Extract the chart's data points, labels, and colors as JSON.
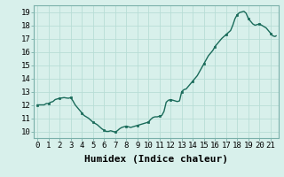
{
  "xlabel": "Humidex (Indice chaleur)",
  "x_values": [
    0,
    0.2,
    0.4,
    0.6,
    0.8,
    1.0,
    1.2,
    1.4,
    1.6,
    1.8,
    2.0,
    2.2,
    2.4,
    2.6,
    2.8,
    3.0,
    3.2,
    3.4,
    3.6,
    3.8,
    4.0,
    4.2,
    4.4,
    4.6,
    4.8,
    5.0,
    5.2,
    5.4,
    5.6,
    5.8,
    6.0,
    6.2,
    6.4,
    6.6,
    6.8,
    7.0,
    7.2,
    7.4,
    7.6,
    7.8,
    8.0,
    8.2,
    8.4,
    8.6,
    8.8,
    9.0,
    9.2,
    9.4,
    9.6,
    9.8,
    10.0,
    10.2,
    10.4,
    10.6,
    10.8,
    11.0,
    11.2,
    11.4,
    11.6,
    11.8,
    12.0,
    12.2,
    12.4,
    12.6,
    12.8,
    13.0,
    13.2,
    13.4,
    13.6,
    13.8,
    14.0,
    14.2,
    14.4,
    14.6,
    14.8,
    15.0,
    15.2,
    15.4,
    15.6,
    15.8,
    16.0,
    16.2,
    16.4,
    16.6,
    16.8,
    17.0,
    17.2,
    17.4,
    17.6,
    17.8,
    18.0,
    18.2,
    18.4,
    18.6,
    18.8,
    19.0,
    19.2,
    19.4,
    19.6,
    19.8,
    20.0,
    20.2,
    20.4,
    20.6,
    20.8,
    21.0,
    21.2,
    21.4,
    21.5
  ],
  "y_values": [
    12.0,
    12.0,
    12.0,
    12.0,
    12.1,
    12.1,
    12.2,
    12.25,
    12.4,
    12.45,
    12.5,
    12.52,
    12.55,
    12.52,
    12.5,
    12.55,
    12.3,
    12.0,
    11.8,
    11.6,
    11.4,
    11.2,
    11.1,
    11.0,
    10.85,
    10.7,
    10.6,
    10.5,
    10.35,
    10.2,
    10.1,
    10.0,
    10.0,
    10.05,
    10.0,
    9.95,
    10.05,
    10.2,
    10.3,
    10.35,
    10.4,
    10.35,
    10.3,
    10.35,
    10.4,
    10.45,
    10.5,
    10.55,
    10.6,
    10.65,
    10.7,
    10.9,
    11.05,
    11.1,
    11.1,
    11.15,
    11.2,
    11.5,
    12.2,
    12.35,
    12.4,
    12.35,
    12.3,
    12.25,
    12.3,
    13.0,
    13.15,
    13.2,
    13.4,
    13.6,
    13.8,
    14.0,
    14.2,
    14.5,
    14.8,
    15.1,
    15.4,
    15.7,
    15.9,
    16.1,
    16.4,
    16.6,
    16.8,
    17.0,
    17.15,
    17.3,
    17.45,
    17.6,
    18.0,
    18.5,
    18.8,
    18.95,
    19.0,
    19.05,
    18.9,
    18.5,
    18.3,
    18.1,
    18.0,
    18.05,
    18.1,
    18.0,
    17.9,
    17.8,
    17.6,
    17.4,
    17.2,
    17.15,
    17.2
  ],
  "ylim": [
    9.5,
    19.5
  ],
  "xlim": [
    -0.3,
    21.7
  ],
  "xticks": [
    0,
    1,
    2,
    3,
    4,
    5,
    6,
    7,
    8,
    9,
    10,
    11,
    12,
    13,
    14,
    15,
    16,
    17,
    18,
    19,
    20,
    21
  ],
  "yticks": [
    10,
    11,
    12,
    13,
    14,
    15,
    16,
    17,
    18,
    19
  ],
  "line_color": "#1a6b5a",
  "marker_color": "#1a6b5a",
  "bg_color": "#d8f0eb",
  "grid_color": "#b8ddd6",
  "xlabel_fontsize": 8,
  "tick_fontsize": 6.5,
  "line_width": 1.0,
  "marker_size": 2.0
}
